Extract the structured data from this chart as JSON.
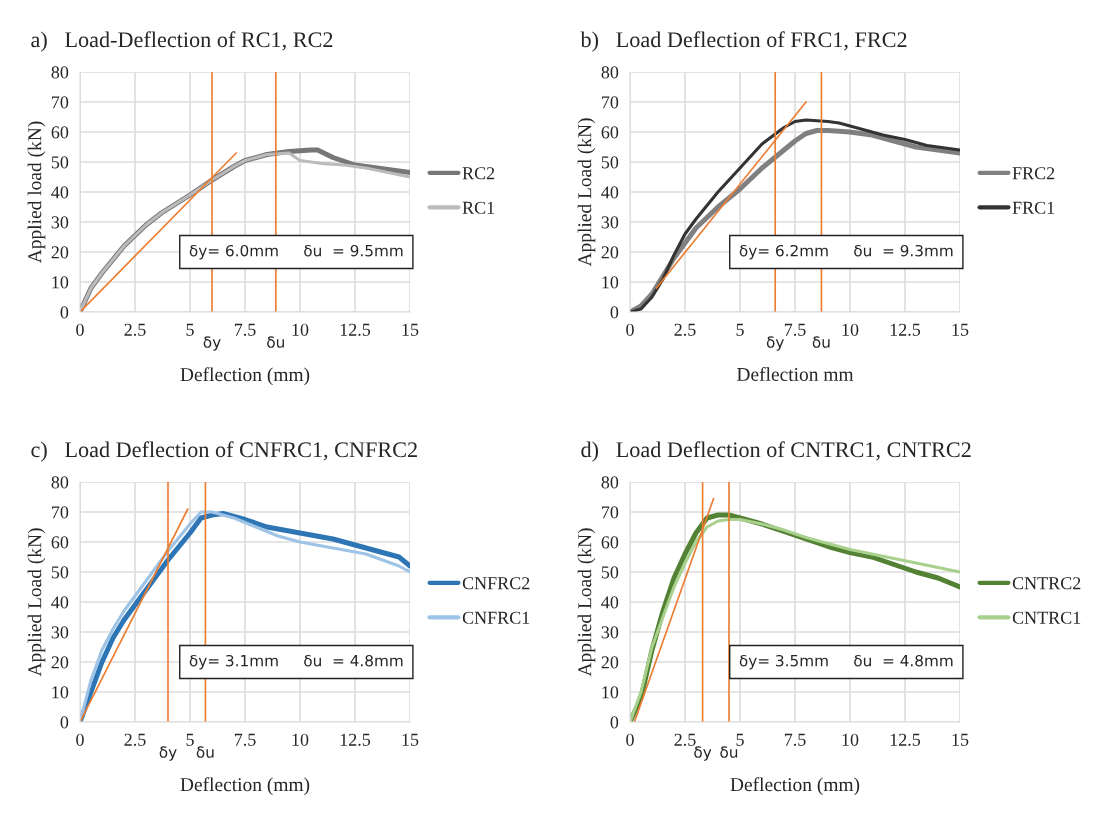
{
  "chart_data": [
    {
      "type": "line",
      "title": "a)   Load-Deflection of RC1, RC2",
      "xlabel": "Deflection (mm)",
      "ylabel": "Applied load (kN)",
      "xlim": [
        0,
        15
      ],
      "ylim": [
        0,
        80
      ],
      "xticks": [
        0,
        2.5,
        5,
        7.5,
        10,
        12.5,
        15
      ],
      "yticks": [
        0,
        10,
        20,
        30,
        40,
        50,
        60,
        70,
        80
      ],
      "grid": true,
      "legend": "right",
      "series": [
        {
          "name": "RC2",
          "color": "#777777",
          "x": [
            0,
            0.5,
            1,
            2,
            3,
            3.7,
            5,
            6,
            7,
            7.5,
            8.5,
            9.5,
            10.5,
            10.8,
            11.5,
            12.5,
            13.5,
            15
          ],
          "values": [
            0,
            8,
            13,
            22,
            29,
            33,
            39,
            44,
            48.5,
            50.5,
            52.5,
            53.5,
            54,
            54,
            51.5,
            49,
            48,
            46.5
          ]
        },
        {
          "name": "RC1",
          "color": "#bbbbbb",
          "x": [
            0,
            0.5,
            1,
            2,
            3,
            3.7,
            5,
            6,
            7,
            7.5,
            8.5,
            9.5,
            9.7,
            10,
            11,
            12,
            13,
            14,
            15
          ],
          "values": [
            0,
            8,
            13,
            22,
            29,
            33,
            39,
            44,
            48.5,
            50.5,
            52.5,
            53,
            52,
            50.5,
            49.5,
            49,
            48,
            46.5,
            45
          ]
        },
        {
          "color": "#ed7d31",
          "x": [
            0,
            7.1
          ],
          "values": [
            0,
            53
          ]
        }
      ],
      "ref_lines": [
        {
          "axis": "x",
          "value": 6.0,
          "label": "δy",
          "color": "#ed7d31"
        },
        {
          "axis": "x",
          "value": 8.9,
          "label": "δu",
          "color": "#ed7d31"
        }
      ],
      "annotations": [
        "δy= 6.0mm     δu  = 9.5mm"
      ]
    },
    {
      "type": "line",
      "title": "b)   Load Deflection of FRC1, FRC2",
      "xlabel": "Deflection mm",
      "ylabel": "Applied Load (kN)",
      "xlim": [
        0,
        15
      ],
      "ylim": [
        0,
        80
      ],
      "xticks": [
        0,
        2.5,
        5,
        7.5,
        10,
        12.5,
        15
      ],
      "yticks": [
        0,
        10,
        20,
        30,
        40,
        50,
        60,
        70,
        80
      ],
      "grid": true,
      "legend": "right",
      "series": [
        {
          "name": "FRC2",
          "color": "#808080",
          "x": [
            0,
            0.5,
            1,
            1.5,
            2,
            2.5,
            3,
            4,
            5,
            6,
            7,
            7.5,
            8,
            8.5,
            9,
            10,
            11,
            12,
            13,
            14,
            15
          ],
          "values": [
            0,
            2,
            6,
            12,
            18,
            23,
            28,
            35,
            41,
            48,
            54,
            57,
            59.5,
            60.5,
            60.5,
            60,
            59,
            57,
            55,
            54,
            53
          ]
        },
        {
          "name": "FRC1",
          "color": "#333333",
          "x": [
            0,
            0.5,
            1,
            1.5,
            2,
            2.5,
            3,
            4,
            5,
            6,
            7,
            7.5,
            8,
            9,
            9.5,
            10.5,
            11.5,
            12.5,
            13.5,
            15
          ],
          "values": [
            0,
            1,
            5,
            11,
            19,
            26,
            31,
            40,
            48,
            56,
            61.5,
            63.5,
            64,
            63.5,
            63,
            61,
            59,
            57.5,
            55.5,
            54
          ]
        },
        {
          "color": "#ed7d31",
          "x": [
            1.2,
            8.0
          ],
          "values": [
            8,
            70
          ]
        }
      ],
      "ref_lines": [
        {
          "axis": "x",
          "value": 6.6,
          "label": "δy",
          "color": "#ed7d31"
        },
        {
          "axis": "x",
          "value": 8.7,
          "label": "δu",
          "color": "#ed7d31"
        }
      ],
      "annotations": [
        "δy= 6.2mm     δu  = 9.3mm"
      ]
    },
    {
      "type": "line",
      "title": "c)   Load Deflection of CNFRC1, CNFRC2",
      "xlabel": "Deflection (mm)",
      "ylabel": "Applied Load (kN)",
      "xlim": [
        0,
        15
      ],
      "ylim": [
        0,
        80
      ],
      "xticks": [
        0,
        2.5,
        5,
        7.5,
        10,
        12.5,
        15
      ],
      "yticks": [
        0,
        10,
        20,
        30,
        40,
        50,
        60,
        70,
        80
      ],
      "grid": true,
      "legend": "right",
      "series": [
        {
          "name": "CNFRC2",
          "color": "#2e75b6",
          "x": [
            0,
            0.5,
            1,
            1.5,
            2,
            3,
            4,
            5,
            5.5,
            6,
            6.5,
            7.5,
            8.5,
            10,
            11.5,
            13,
            14.5,
            15
          ],
          "values": [
            0,
            10,
            20,
            28,
            34,
            44,
            54,
            63,
            68,
            69,
            69.5,
            67.5,
            65,
            63,
            61,
            58,
            55,
            52
          ]
        },
        {
          "name": "CNFRC1",
          "color": "#9dc3e6",
          "x": [
            0,
            0.5,
            1,
            1.5,
            2,
            3,
            4,
            5,
            5.5,
            6,
            7,
            8,
            9,
            10,
            11.5,
            13,
            14.5,
            15
          ],
          "values": [
            0,
            14,
            24,
            31,
            37,
            47,
            57,
            66,
            70,
            70,
            68,
            65,
            62,
            60,
            58,
            56,
            52,
            50
          ]
        },
        {
          "color": "#ed7d31",
          "x": [
            0,
            4.9
          ],
          "values": [
            0,
            71
          ]
        }
      ],
      "ref_lines": [
        {
          "axis": "x",
          "value": 4.0,
          "label": "δy",
          "color": "#ed7d31"
        },
        {
          "axis": "x",
          "value": 5.7,
          "label": "δu",
          "color": "#ed7d31"
        }
      ],
      "annotations": [
        "δy= 3.1mm     δu  = 4.8mm"
      ]
    },
    {
      "type": "line",
      "title": "d)   Load Deflection of CNTRC1, CNTRC2",
      "xlabel": "Deflection (mm)",
      "ylabel": "Applied Load (kN)",
      "xlim": [
        0,
        15
      ],
      "ylim": [
        0,
        80
      ],
      "xticks": [
        0,
        2.5,
        5,
        7.5,
        10,
        12.5,
        15
      ],
      "yticks": [
        0,
        10,
        20,
        30,
        40,
        50,
        60,
        70,
        80
      ],
      "grid": true,
      "legend": "right",
      "series": [
        {
          "name": "CNTRC2",
          "color": "#548235",
          "x": [
            0,
            0.5,
            1,
            1.5,
            2,
            2.5,
            3,
            3.5,
            4,
            4.5,
            5,
            6,
            7,
            8,
            9,
            10,
            11,
            12,
            13,
            14,
            15
          ],
          "values": [
            0,
            8,
            24,
            37,
            48,
            56,
            63,
            68,
            69,
            69,
            68,
            66,
            63.5,
            61,
            58.5,
            56.5,
            55,
            52.5,
            50,
            48,
            45
          ]
        },
        {
          "name": "CNTRC1",
          "color": "#a9d18e",
          "x": [
            0,
            0.5,
            1,
            1.5,
            2,
            2.5,
            3,
            3.5,
            4,
            4.5,
            5,
            6,
            7,
            8,
            9,
            10,
            11,
            12,
            13,
            14,
            15
          ],
          "values": [
            0,
            10,
            25,
            35,
            45,
            53,
            60,
            65,
            67,
            67.5,
            67.5,
            66,
            64,
            61.5,
            59.5,
            57.5,
            56,
            54.5,
            53,
            51.5,
            50
          ]
        },
        {
          "color": "#ed7d31",
          "x": [
            0.2,
            3.8
          ],
          "values": [
            0,
            74.5
          ]
        }
      ],
      "ref_lines": [
        {
          "axis": "x",
          "value": 3.3,
          "label": "δy",
          "color": "#ed7d31"
        },
        {
          "axis": "x",
          "value": 4.5,
          "label": "δu",
          "color": "#ed7d31"
        }
      ],
      "annotations": [
        "δy= 3.5mm     δu  = 4.8mm"
      ]
    }
  ]
}
